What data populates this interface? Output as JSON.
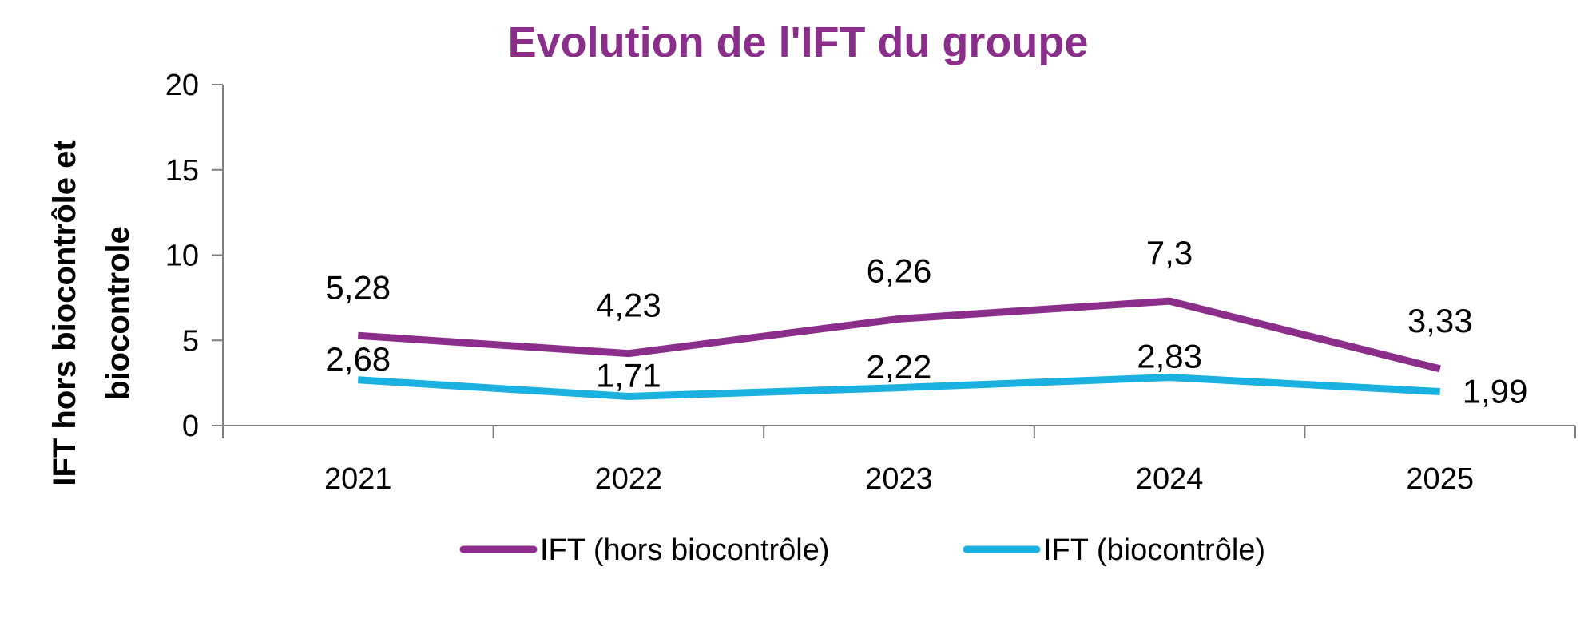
{
  "chart_data": {
    "type": "line",
    "title": "Evolution de l'IFT du groupe",
    "ylabel_line1": "IFT  hors biocontrôle et",
    "ylabel_line2": "biocontrole",
    "categories": [
      "2021",
      "2022",
      "2023",
      "2024",
      "2025"
    ],
    "ylim": [
      0,
      20
    ],
    "yticks": [
      "0",
      "5",
      "10",
      "15",
      "20"
    ],
    "grid": false,
    "legend_position": "bottom",
    "series": [
      {
        "name": "IFT (hors biocontrôle)",
        "values": [
          5.28,
          4.23,
          6.26,
          7.3,
          3.33
        ],
        "labels": [
          "5,28",
          "4,23",
          "6,26",
          "7,3",
          "3,33"
        ],
        "color": "#8B2E8B"
      },
      {
        "name": "IFT (biocontrôle)",
        "values": [
          2.68,
          1.71,
          2.22,
          2.83,
          1.99
        ],
        "labels": [
          "2,68",
          "1,71",
          "2,22",
          "2,83",
          "1,99"
        ],
        "color": "#1AB0E0"
      }
    ],
    "colors": {
      "title": "#8B2E8B",
      "axis": "#7F7F7F"
    }
  }
}
